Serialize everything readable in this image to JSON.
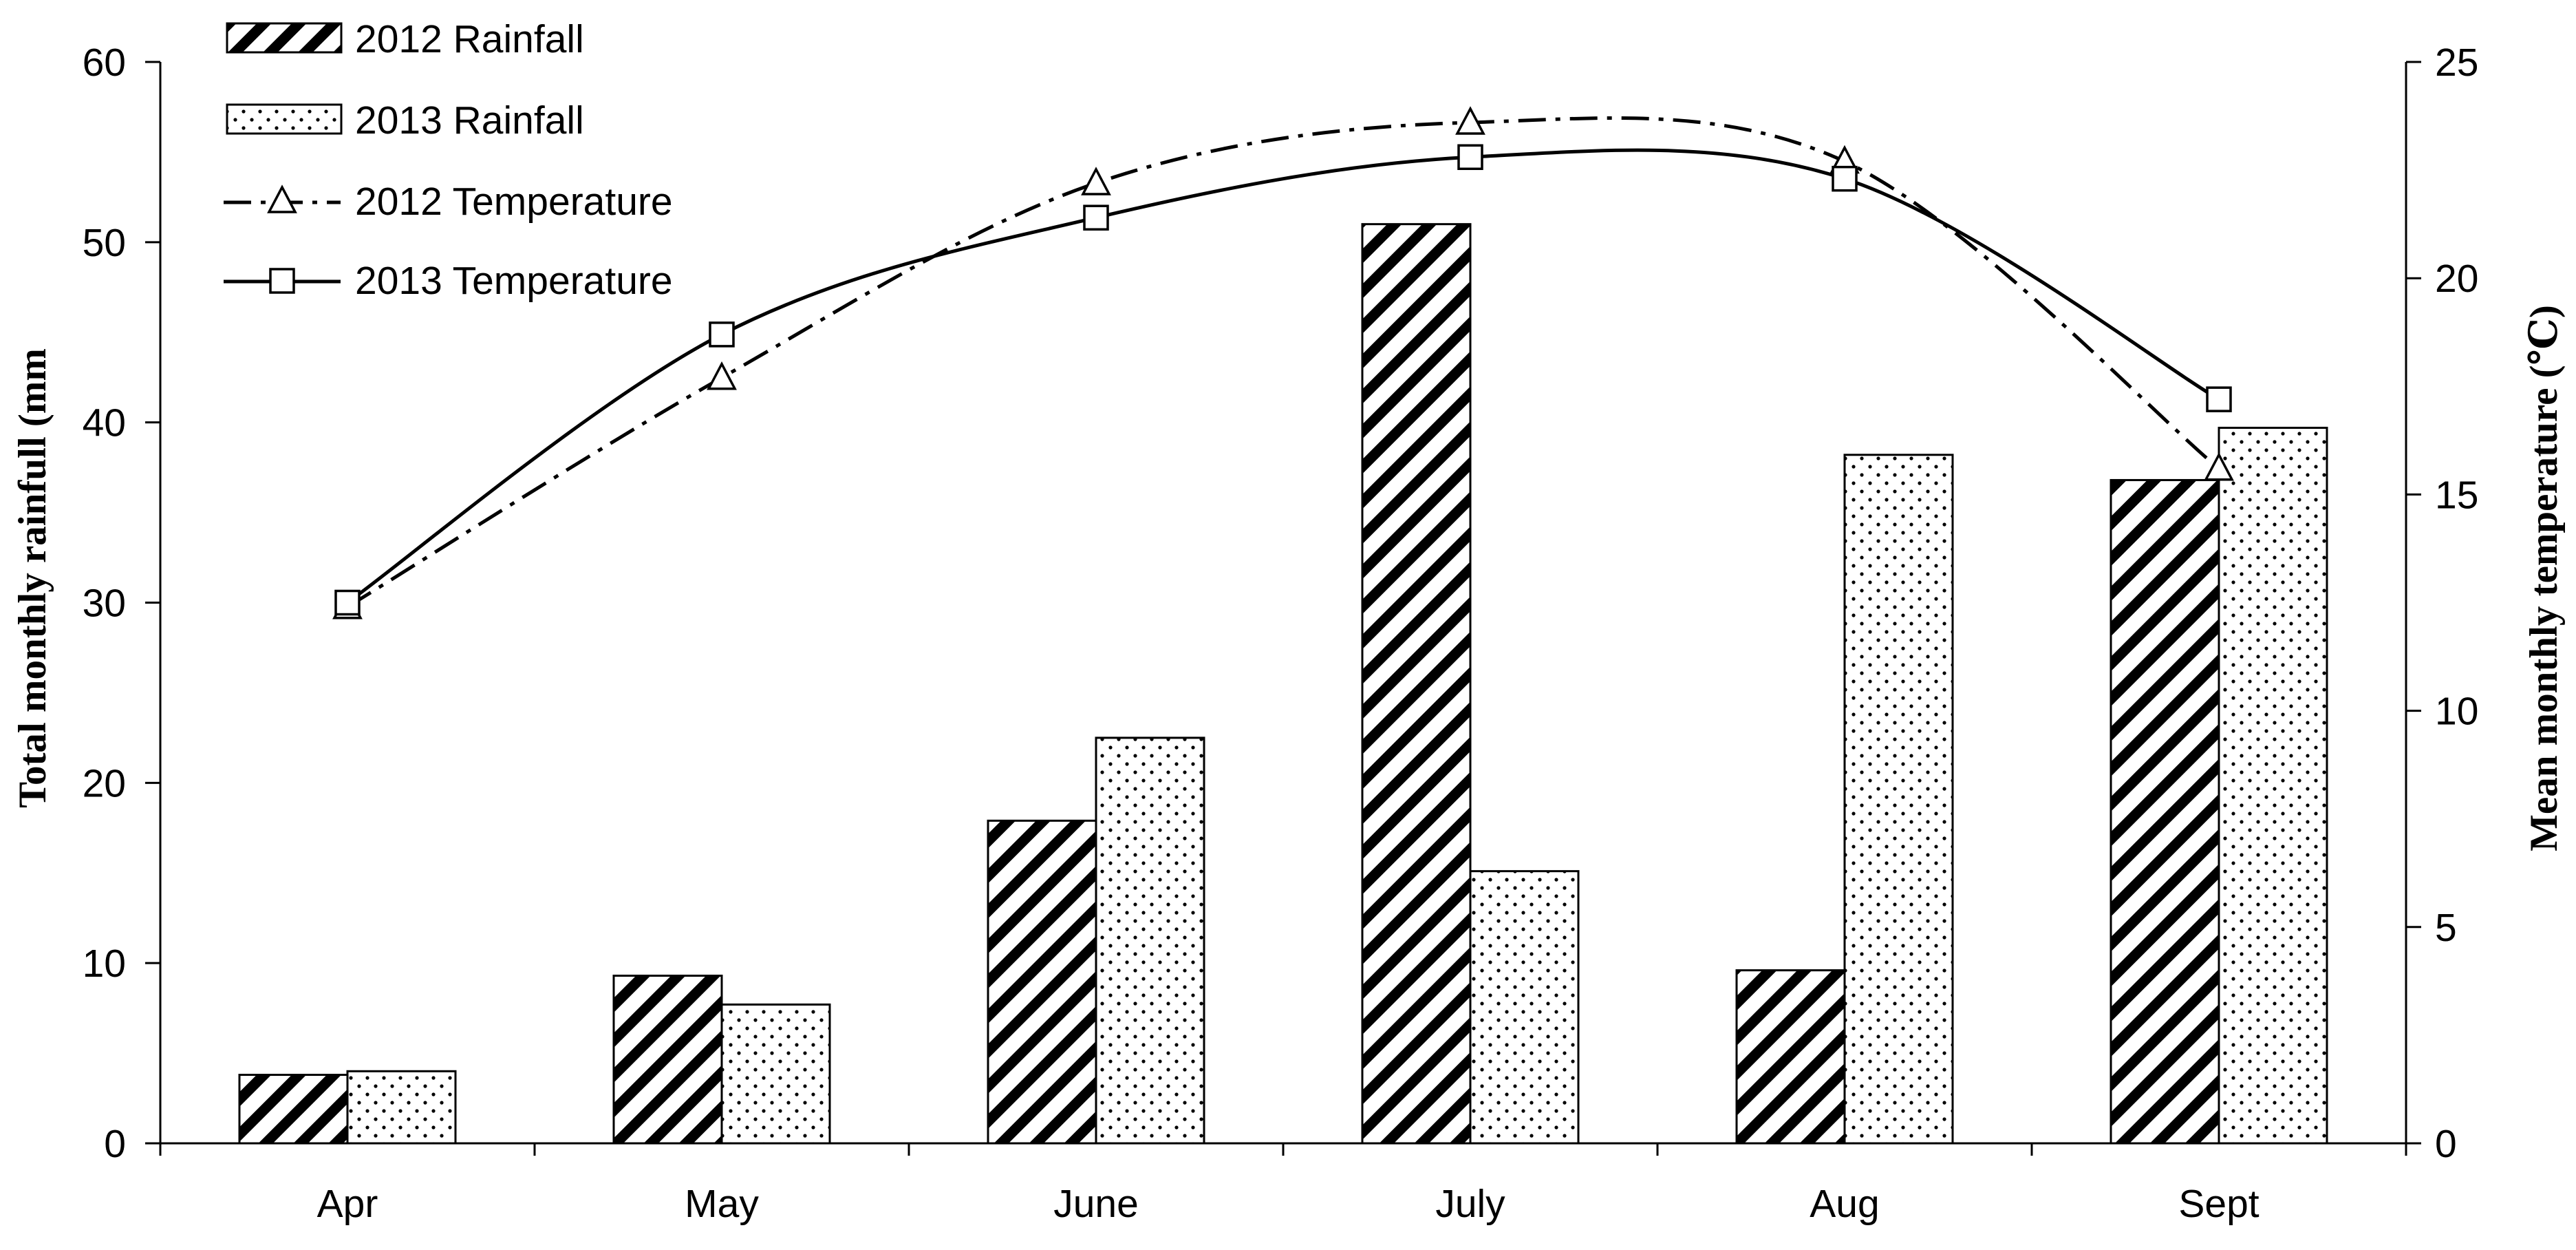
{
  "chart_data": {
    "type": "bar",
    "categories": [
      "Apr",
      "May",
      "June",
      "July",
      "Aug",
      "Sept"
    ],
    "bar_series": [
      {
        "name": "2012 Rainfall",
        "pattern": "diagonal-hatch",
        "values": [
          3.8,
          9.3,
          17.9,
          51.0,
          9.6,
          36.8
        ]
      },
      {
        "name": "2013 Rainfall",
        "pattern": "dots",
        "values": [
          4.0,
          7.7,
          22.5,
          15.1,
          38.2,
          39.7
        ]
      }
    ],
    "line_series": [
      {
        "name": "2012 Temperature",
        "marker": "triangle",
        "line_style": "dash-dot",
        "values": [
          12.4,
          17.7,
          22.2,
          23.6,
          22.7,
          15.6
        ]
      },
      {
        "name": "2013 Temperature",
        "marker": "square",
        "line_style": "solid",
        "values": [
          12.5,
          18.7,
          21.4,
          22.8,
          22.3,
          17.2
        ]
      }
    ],
    "ylabel_left": "Total monthly rainfull (mm",
    "ylabel_right": "Mean monthly temperature (℃)",
    "ylim_left": [
      0,
      60
    ],
    "yticks_left": [
      "0",
      "10",
      "20",
      "30",
      "40",
      "50",
      "60"
    ],
    "ylim_right": [
      0,
      25
    ],
    "yticks_right": [
      "0",
      "5",
      "10",
      "15",
      "20",
      "25"
    ],
    "legend_position": "top-left",
    "grid": false,
    "colors": {
      "ink": "#000000",
      "background": "#ffffff"
    }
  }
}
